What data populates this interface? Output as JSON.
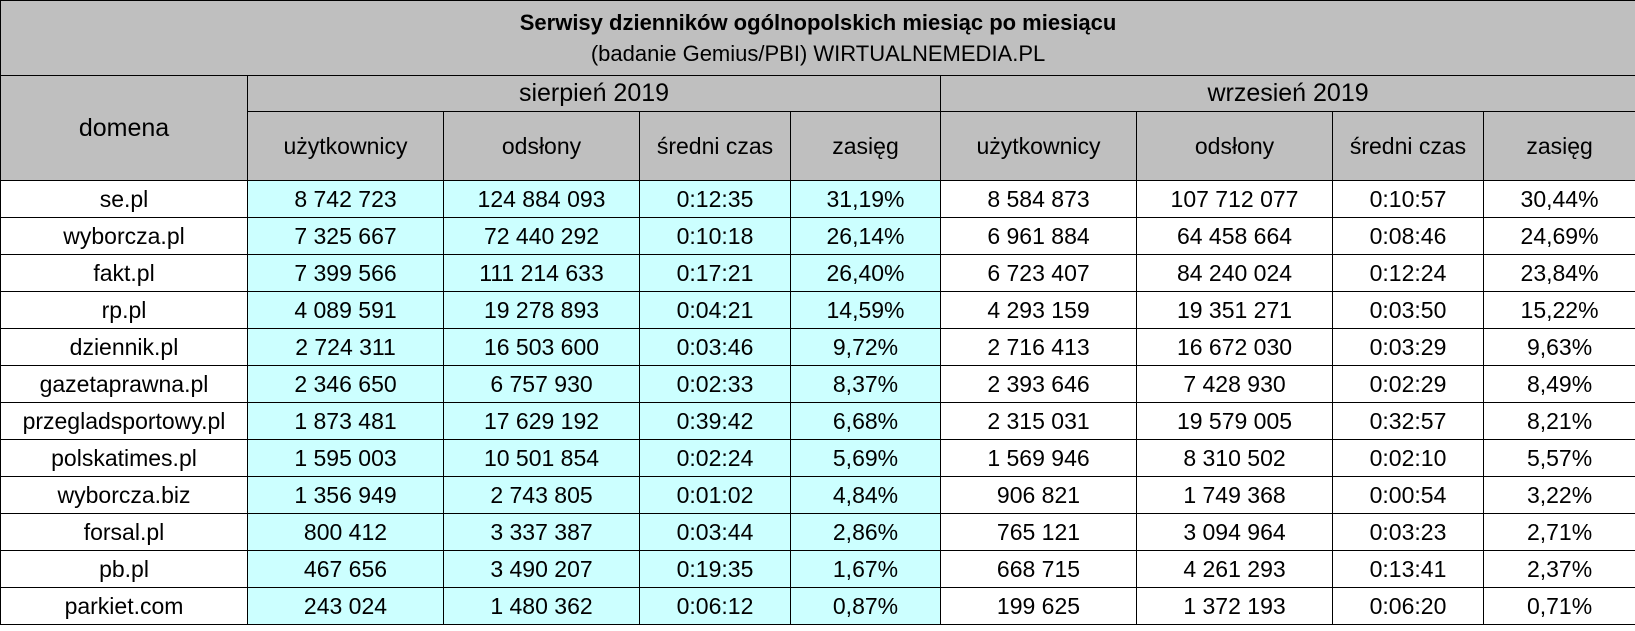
{
  "title": "Serwisy dzienników ogólnopolskich miesiąc po miesiącu",
  "subtitle": "(badanie Gemius/PBI) WIRTUALNEMEDIA.PL",
  "domain_header": "domena",
  "periods": [
    "sierpień 2019",
    "wrzesień 2019"
  ],
  "columns": [
    "użytkownicy",
    "odsłony",
    "średni czas",
    "zasięg"
  ],
  "rows": [
    {
      "domain": "se.pl",
      "aug": [
        "8 742 723",
        "124 884 093",
        "0:12:35",
        "31,19%"
      ],
      "sep": [
        "8 584 873",
        "107 712 077",
        "0:10:57",
        "30,44%"
      ]
    },
    {
      "domain": "wyborcza.pl",
      "aug": [
        "7 325 667",
        "72 440 292",
        "0:10:18",
        "26,14%"
      ],
      "sep": [
        "6 961 884",
        "64 458 664",
        "0:08:46",
        "24,69%"
      ]
    },
    {
      "domain": "fakt.pl",
      "aug": [
        "7 399 566",
        "111 214 633",
        "0:17:21",
        "26,40%"
      ],
      "sep": [
        "6 723 407",
        "84 240 024",
        "0:12:24",
        "23,84%"
      ]
    },
    {
      "domain": "rp.pl",
      "aug": [
        "4 089 591",
        "19 278 893",
        "0:04:21",
        "14,59%"
      ],
      "sep": [
        "4 293 159",
        "19 351 271",
        "0:03:50",
        "15,22%"
      ]
    },
    {
      "domain": "dziennik.pl",
      "aug": [
        "2 724 311",
        "16 503 600",
        "0:03:46",
        "9,72%"
      ],
      "sep": [
        "2 716 413",
        "16 672 030",
        "0:03:29",
        "9,63%"
      ]
    },
    {
      "domain": "gazetaprawna.pl",
      "aug": [
        "2 346 650",
        "6 757 930",
        "0:02:33",
        "8,37%"
      ],
      "sep": [
        "2 393 646",
        "7 428 930",
        "0:02:29",
        "8,49%"
      ]
    },
    {
      "domain": "przegladsportowy.pl",
      "aug": [
        "1 873 481",
        "17 629 192",
        "0:39:42",
        "6,68%"
      ],
      "sep": [
        "2 315 031",
        "19 579 005",
        "0:32:57",
        "8,21%"
      ]
    },
    {
      "domain": "polskatimes.pl",
      "aug": [
        "1 595 003",
        "10 501 854",
        "0:02:24",
        "5,69%"
      ],
      "sep": [
        "1 569 946",
        "8 310 502",
        "0:02:10",
        "5,57%"
      ]
    },
    {
      "domain": "wyborcza.biz",
      "aug": [
        "1 356 949",
        "2 743 805",
        "0:01:02",
        "4,84%"
      ],
      "sep": [
        "906 821",
        "1 749 368",
        "0:00:54",
        "3,22%"
      ]
    },
    {
      "domain": "forsal.pl",
      "aug": [
        "800 412",
        "3 337 387",
        "0:03:44",
        "2,86%"
      ],
      "sep": [
        "765 121",
        "3 094 964",
        "0:03:23",
        "2,71%"
      ]
    },
    {
      "domain": "pb.pl",
      "aug": [
        "467 656",
        "3 490 207",
        "0:19:35",
        "1,67%"
      ],
      "sep": [
        "668 715",
        "4 261 293",
        "0:13:41",
        "2,37%"
      ]
    },
    {
      "domain": "parkiet.com",
      "aug": [
        "243 024",
        "1 480 362",
        "0:06:12",
        "0,87%"
      ],
      "sep": [
        "199 625",
        "1 372 193",
        "0:06:20",
        "0,71%"
      ]
    }
  ],
  "colors": {
    "header_bg": "#bfbfbf",
    "august_bg": "#ccffff",
    "september_bg": "#ffffff",
    "grid": "#000000"
  }
}
